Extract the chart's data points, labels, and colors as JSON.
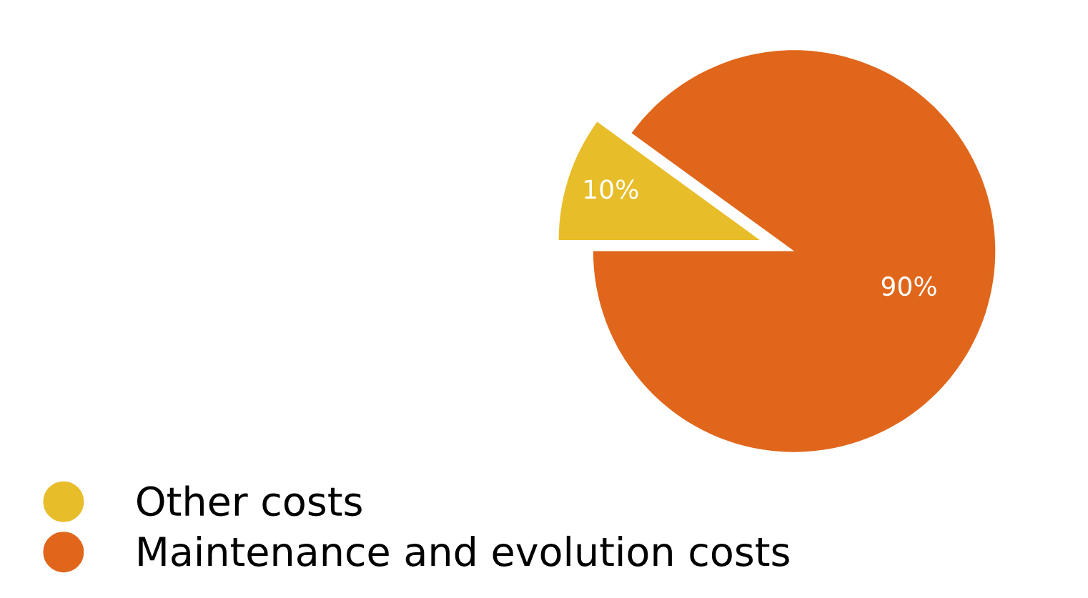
{
  "chart_data": {
    "type": "pie",
    "categories": [
      "Other costs",
      "Maintenance and evolution costs"
    ],
    "values": [
      10,
      90
    ],
    "colors": [
      "#e8bd2a",
      "#e0661c"
    ],
    "data_labels": true,
    "value_labels": [
      "10%",
      "90%"
    ],
    "legend": "bottom left"
  }
}
